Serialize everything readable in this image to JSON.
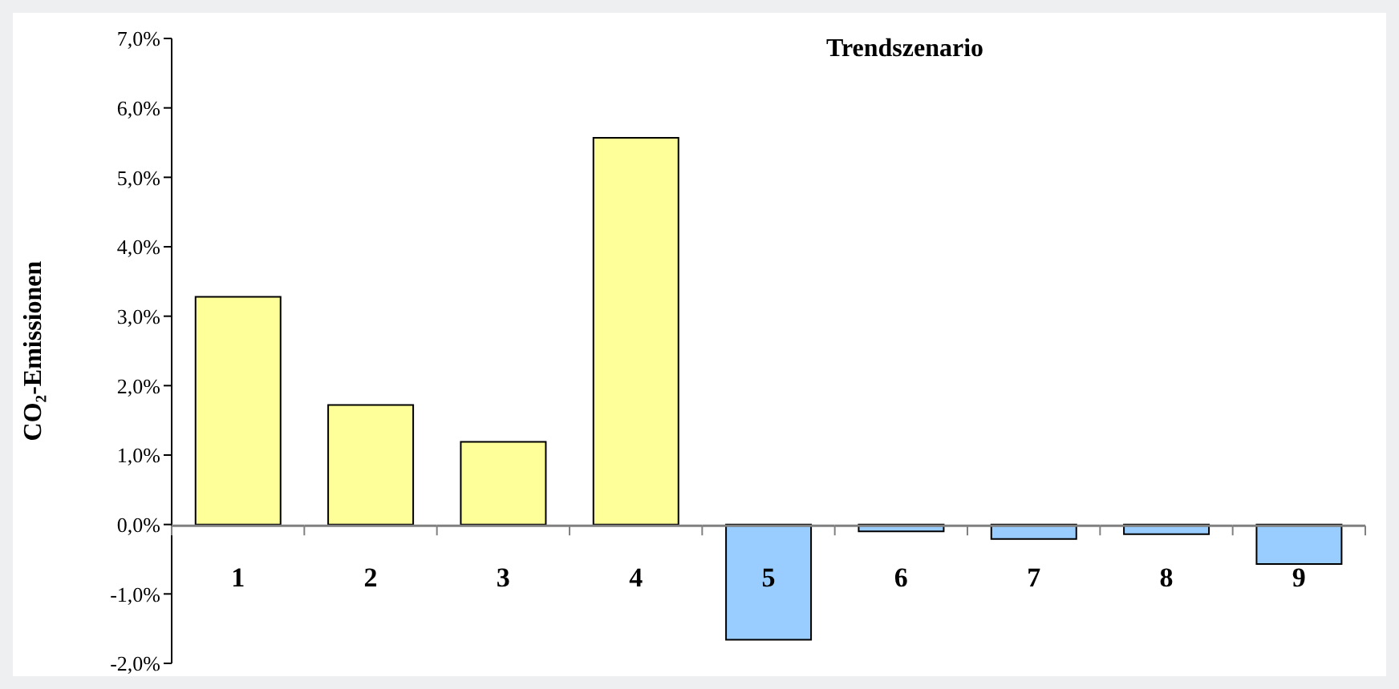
{
  "chart_data": {
    "type": "bar",
    "title": "Trendszenario",
    "ylabel": "CO₂-Emissionen",
    "categories": [
      "1",
      "2",
      "3",
      "4",
      "5",
      "6",
      "7",
      "8",
      "9"
    ],
    "values": [
      3.28,
      1.72,
      1.19,
      5.57,
      -1.66,
      -0.1,
      -0.21,
      -0.14,
      -0.57
    ],
    "colors": [
      "#ffff99",
      "#ffff99",
      "#ffff99",
      "#ffff99",
      "#99ccff",
      "#99ccff",
      "#99ccff",
      "#99ccff",
      "#99ccff"
    ],
    "ylim": [
      -2,
      7
    ],
    "yticks": [
      {
        "value": -2,
        "label": "-2,0%"
      },
      {
        "value": -1,
        "label": "-1,0%"
      },
      {
        "value": 0,
        "label": "0,0%"
      },
      {
        "value": 1,
        "label": "1,0%"
      },
      {
        "value": 2,
        "label": "2,0%"
      },
      {
        "value": 3,
        "label": "3,0%"
      },
      {
        "value": 4,
        "label": "4,0%"
      },
      {
        "value": 5,
        "label": "5,0%"
      },
      {
        "value": 6,
        "label": "6,0%"
      },
      {
        "value": 7,
        "label": "7,0%"
      }
    ],
    "grid": false,
    "legend": false
  }
}
